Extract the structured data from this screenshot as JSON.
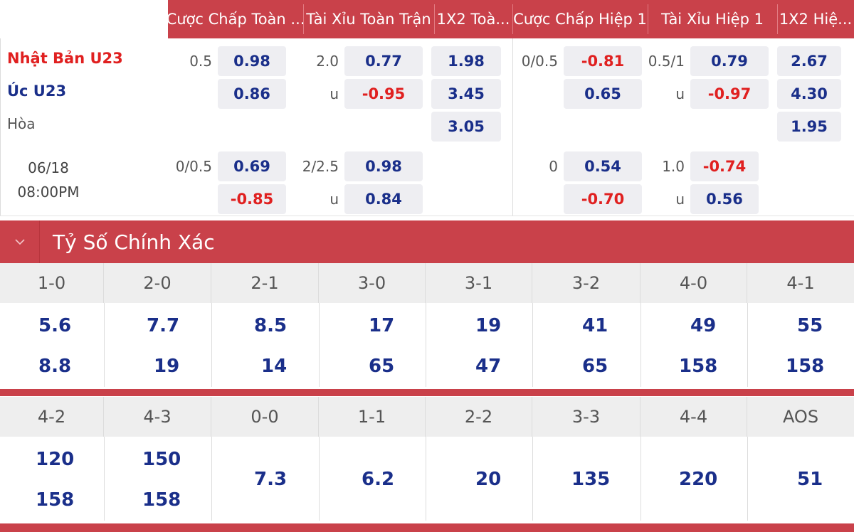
{
  "odds_header": [
    "Cược Chấp Toàn ...",
    "Tài Xỉu Toàn Trận",
    "1X2 Toà...",
    "Cược Chấp Hiệp 1",
    "Tài Xỉu Hiệp 1",
    "1X2 Hiệ..."
  ],
  "match": {
    "home": "Nhật Bản U23",
    "away": "Úc U23",
    "draw": "Hòa",
    "date": "06/18",
    "time": "08:00PM"
  },
  "line1": {
    "ah_ft_line": "0.5",
    "ah_ft_home": "0.98",
    "ah_ft_away": "0.86",
    "ou_ft_line": "2.0",
    "ou_ft_over": "0.77",
    "ou_ft_u": "u",
    "ou_ft_under": "-0.95",
    "x12_ft_home": "1.98",
    "x12_ft_away": "3.45",
    "x12_ft_draw": "3.05",
    "ah_h1_line": "0/0.5",
    "ah_h1_home": "-0.81",
    "ah_h1_away": "0.65",
    "ou_h1_line": "0.5/1",
    "ou_h1_over": "0.79",
    "ou_h1_u": "u",
    "ou_h1_under": "-0.97",
    "x12_h1_home": "2.67",
    "x12_h1_away": "4.30",
    "x12_h1_draw": "1.95"
  },
  "line2": {
    "ah_ft_line": "0/0.5",
    "ah_ft_home": "0.69",
    "ah_ft_away": "-0.85",
    "ou_ft_line": "2/2.5",
    "ou_ft_over": "0.98",
    "ou_ft_u": "u",
    "ou_ft_under": "0.84",
    "ah_h1_line": "0",
    "ah_h1_home": "0.54",
    "ah_h1_away": "-0.70",
    "ou_h1_line": "1.0",
    "ou_h1_over": "-0.74",
    "ou_h1_u": "u",
    "ou_h1_under": "0.56"
  },
  "section": {
    "title": "Tỷ Số Chính Xác",
    "chevron": "chevron-down-icon"
  },
  "scores_a": {
    "labels": [
      "1-0",
      "2-0",
      "2-1",
      "3-0",
      "3-1",
      "3-2",
      "4-0",
      "4-1"
    ],
    "row1": [
      "5.6",
      "7.7",
      "8.5",
      "17",
      "19",
      "41",
      "49",
      "55"
    ],
    "row2": [
      "8.8",
      "19",
      "14",
      "65",
      "47",
      "65",
      "158",
      "158"
    ]
  },
  "scores_b": {
    "labels": [
      "4-2",
      "4-3",
      "0-0",
      "1-1",
      "2-2",
      "3-3",
      "4-4",
      "AOS"
    ],
    "row1": [
      "120",
      "150"
    ],
    "row2": [
      "158",
      "158"
    ],
    "single": [
      "7.3",
      "6.2",
      "20",
      "135",
      "220",
      "51"
    ]
  },
  "colors": {
    "header_red": "#c9414a",
    "value_blue": "#1a2f8a",
    "value_red": "#e02020"
  }
}
